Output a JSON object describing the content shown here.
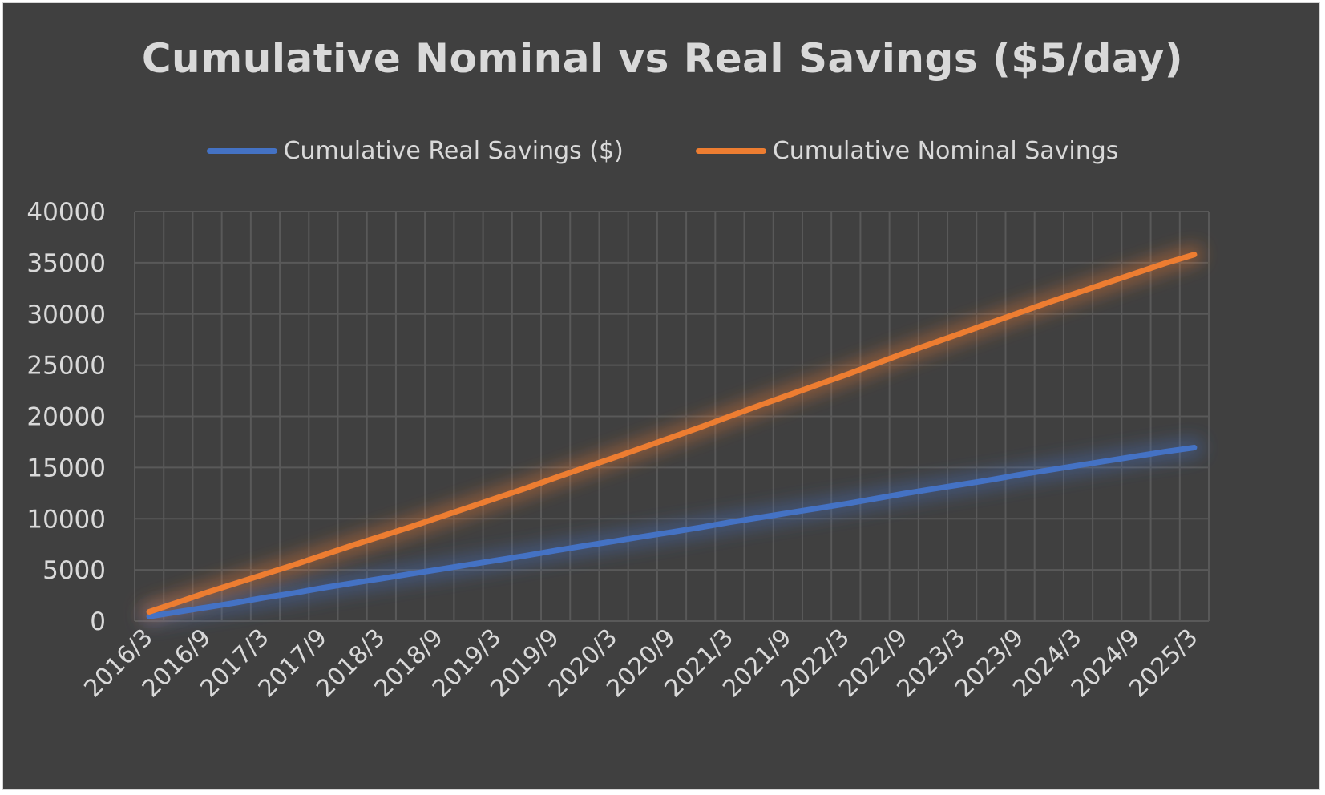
{
  "colors": {
    "background": "#404040",
    "gridline": "#595959",
    "text": "#d9d9d9",
    "real_series": "#4472c4",
    "nominal_series": "#ed7d31"
  },
  "chart_data": {
    "type": "line",
    "title": "Cumulative Nominal vs Real Savings ($5/day)",
    "xlabel": "",
    "ylabel": "",
    "ylim": [
      0,
      40000
    ],
    "y_ticks": [
      "0",
      "5000",
      "10000",
      "15000",
      "20000",
      "25000",
      "30000",
      "35000",
      "40000"
    ],
    "x_tick_labels": [
      "2016/3",
      "2016/9",
      "2017/3",
      "2017/9",
      "2018/3",
      "2018/9",
      "2019/3",
      "2019/9",
      "2020/3",
      "2020/9",
      "2021/3",
      "2021/9",
      "2022/3",
      "2022/9",
      "2023/3",
      "2023/9",
      "2024/3",
      "2024/9",
      "2025/3"
    ],
    "x": [
      "2016/3",
      "2016/6",
      "2016/9",
      "2016/12",
      "2017/3",
      "2017/6",
      "2017/9",
      "2017/12",
      "2018/3",
      "2018/6",
      "2018/9",
      "2018/12",
      "2019/3",
      "2019/6",
      "2019/9",
      "2019/12",
      "2020/3",
      "2020/6",
      "2020/9",
      "2020/12",
      "2021/3",
      "2021/6",
      "2021/9",
      "2021/12",
      "2022/3",
      "2022/6",
      "2022/9",
      "2022/12",
      "2023/3",
      "2023/6",
      "2023/9",
      "2023/12",
      "2024/3",
      "2024/6",
      "2024/9",
      "2024/12",
      "2025/3"
    ],
    "grid": true,
    "legend_position": "top",
    "series": [
      {
        "name": "Cumulative Real Savings ($)",
        "color": "#4472c4",
        "values": [
          450,
          900,
          1350,
          1800,
          2300,
          2750,
          3250,
          3700,
          4150,
          4600,
          5050,
          5500,
          5950,
          6400,
          6900,
          7350,
          7800,
          8250,
          8700,
          9150,
          9650,
          10100,
          10550,
          11000,
          11450,
          11950,
          12450,
          12900,
          13350,
          13800,
          14300,
          14750,
          15200,
          15650,
          16100,
          16550,
          16950
        ]
      },
      {
        "name": "Cumulative Nominal Savings",
        "color": "#ed7d31",
        "values": [
          900,
          1850,
          2800,
          3700,
          4600,
          5500,
          6450,
          7400,
          8300,
          9200,
          10150,
          11100,
          12050,
          13000,
          14000,
          15000,
          15950,
          16950,
          17950,
          18950,
          20000,
          21050,
          22050,
          23050,
          24050,
          25100,
          26150,
          27150,
          28150,
          29150,
          30150,
          31150,
          32100,
          33050,
          34000,
          34950,
          35800
        ]
      }
    ]
  }
}
